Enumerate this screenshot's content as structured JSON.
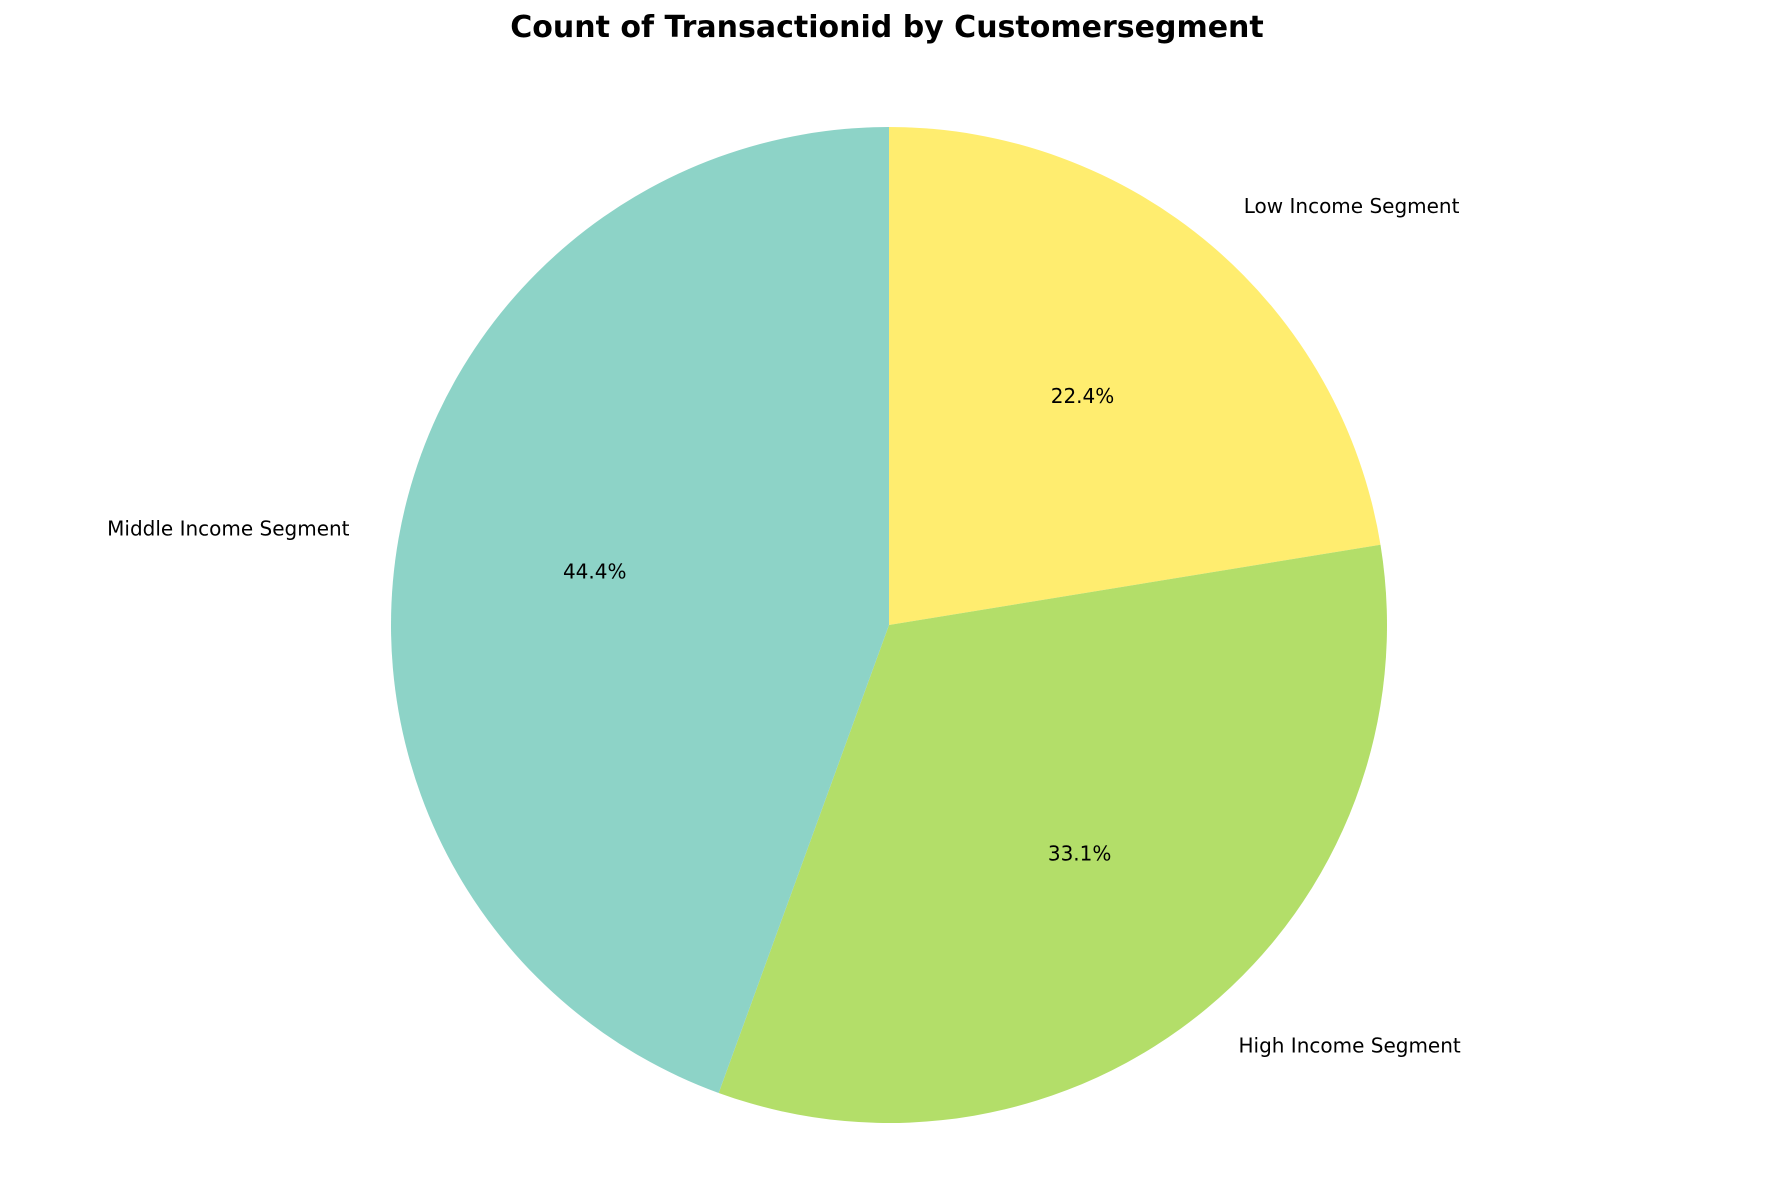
{
  "chart_data": {
    "type": "pie",
    "title": "Count of Transactionid by Customersegment",
    "slices": [
      {
        "label": "Low Income Segment",
        "value": 22.4,
        "pct_label": "22.4%",
        "color": "#ffed6f"
      },
      {
        "label": "High Income Segment",
        "value": 33.1,
        "pct_label": "33.1%",
        "color": "#b3de69"
      },
      {
        "label": "Middle Income Segment",
        "value": 44.4,
        "pct_label": "44.4%",
        "color": "#8dd3c7"
      }
    ],
    "start_angle": "top",
    "direction": "clockwise",
    "legend": "none"
  }
}
